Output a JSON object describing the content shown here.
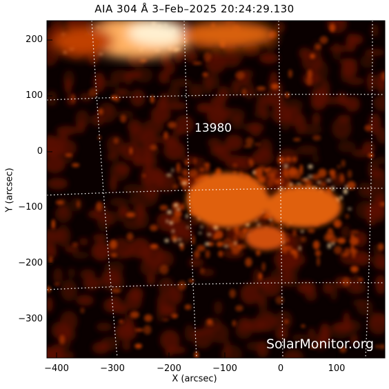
{
  "title": "AIA 304 Å  3–Feb–2025 20:24:29.130",
  "axes": {
    "x_label": "X (arcsec)",
    "y_label": "Y (arcsec)",
    "x_ticks": [
      "−400",
      "−300",
      "−200",
      "−100",
      "0",
      "100"
    ],
    "y_ticks": [
      "200",
      "100",
      "0",
      "−100",
      "−200",
      "−300"
    ]
  },
  "annotation": {
    "active_region": "13980"
  },
  "watermark": "SolarMonitor.org",
  "colors": {
    "background": "#0a0000",
    "plasma_dim": "#5a1000",
    "plasma_mid": "#b83a00",
    "plasma_bright": "#ffd9a0",
    "grid": "#ffffff"
  }
}
